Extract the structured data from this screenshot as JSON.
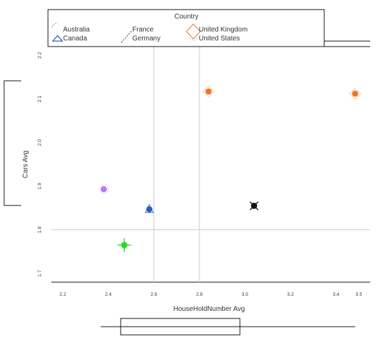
{
  "chart_data": {
    "type": "scatter",
    "xlabel": "HouseHoldNumber Avg",
    "ylabel": "Cars Avg",
    "xlim": [
      2.15,
      3.55
    ],
    "ylim": [
      1.68,
      2.22
    ],
    "xticks": [
      2.2,
      2.4,
      2.6,
      2.8,
      3.0,
      3.2,
      3.4,
      3.5
    ],
    "xtick_labels": [
      "2.2",
      "2.4",
      "2.6",
      "2.8",
      "3.0",
      "3.2",
      "3.4",
      "3.5"
    ],
    "yticks": [
      1.7,
      1.8,
      1.9,
      2.0,
      2.1,
      2.2
    ],
    "ytick_labels": [
      "1.7",
      "1.8",
      "1.9",
      "2.0",
      "2.1",
      "2.2"
    ],
    "grid_x": [
      2.6,
      2.8
    ],
    "grid_y": [
      1.8
    ],
    "legend": {
      "title": "Country",
      "placement": "top",
      "entries": [
        {
          "label": "Australia",
          "color": "#e8782c",
          "symbol": "arc"
        },
        {
          "label": "Canada",
          "color": "#2b5cb8",
          "symbol": "triangle"
        },
        {
          "label": "France",
          "color": "#222222",
          "symbol": "dash"
        },
        {
          "label": "Germany",
          "color": "#222222",
          "symbol": "none"
        },
        {
          "label": "United Kingdom",
          "color": "#e8782c",
          "symbol": "diamond"
        },
        {
          "label": "United States",
          "color": "#bbbbbb",
          "symbol": "none"
        }
      ]
    },
    "points": [
      {
        "x": 2.84,
        "y": 2.117,
        "color": "#e8782c",
        "marker": "diamond"
      },
      {
        "x": 3.58,
        "y": 2.112,
        "color": "#e8782c",
        "marker": "diamond"
      },
      {
        "x": 2.38,
        "y": 1.893,
        "color": "#b57bee",
        "marker": "circle"
      },
      {
        "x": 2.58,
        "y": 1.847,
        "color": "#2b5cb8",
        "marker": "triangle"
      },
      {
        "x": 3.04,
        "y": 1.855,
        "color": "#111111",
        "marker": "x"
      },
      {
        "x": 2.47,
        "y": 1.765,
        "color": "#22dd22",
        "marker": "cross"
      }
    ]
  }
}
